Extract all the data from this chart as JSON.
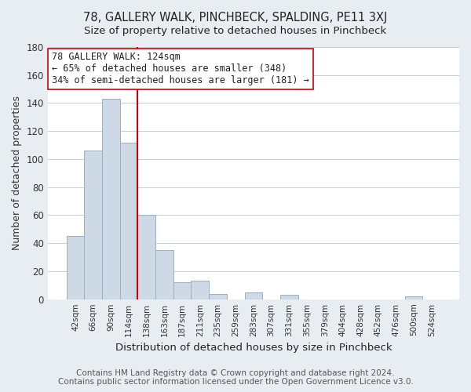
{
  "title": "78, GALLERY WALK, PINCHBECK, SPALDING, PE11 3XJ",
  "subtitle": "Size of property relative to detached houses in Pinchbeck",
  "xlabel": "Distribution of detached houses by size in Pinchbeck",
  "ylabel": "Number of detached properties",
  "bar_labels": [
    "42sqm",
    "66sqm",
    "90sqm",
    "114sqm",
    "138sqm",
    "163sqm",
    "187sqm",
    "211sqm",
    "235sqm",
    "259sqm",
    "283sqm",
    "307sqm",
    "331sqm",
    "355sqm",
    "379sqm",
    "404sqm",
    "428sqm",
    "452sqm",
    "476sqm",
    "500sqm",
    "524sqm"
  ],
  "bar_values": [
    45,
    106,
    143,
    112,
    60,
    35,
    12,
    13,
    4,
    0,
    5,
    0,
    3,
    0,
    0,
    0,
    0,
    0,
    0,
    2,
    0
  ],
  "bar_color": "#cdd9e5",
  "bar_edge_color": "#9ab0c4",
  "ylim": [
    0,
    180
  ],
  "yticks": [
    0,
    20,
    40,
    60,
    80,
    100,
    120,
    140,
    160,
    180
  ],
  "vline_x": 3.5,
  "vline_color": "#cc0000",
  "annotation_line1": "78 GALLERY WALK: 124sqm",
  "annotation_line2": "← 65% of detached houses are smaller (348)",
  "annotation_line3": "34% of semi-detached houses are larger (181) →",
  "annotation_box_color": "#ffffff",
  "annotation_box_edge": "#cc0000",
  "footer": "Contains HM Land Registry data © Crown copyright and database right 2024.\nContains public sector information licensed under the Open Government Licence v3.0.",
  "background_color": "#e8edf2",
  "plot_background": "#ffffff",
  "title_fontsize": 10.5,
  "footer_fontsize": 7.5,
  "grid_color": "#c5cfd8"
}
